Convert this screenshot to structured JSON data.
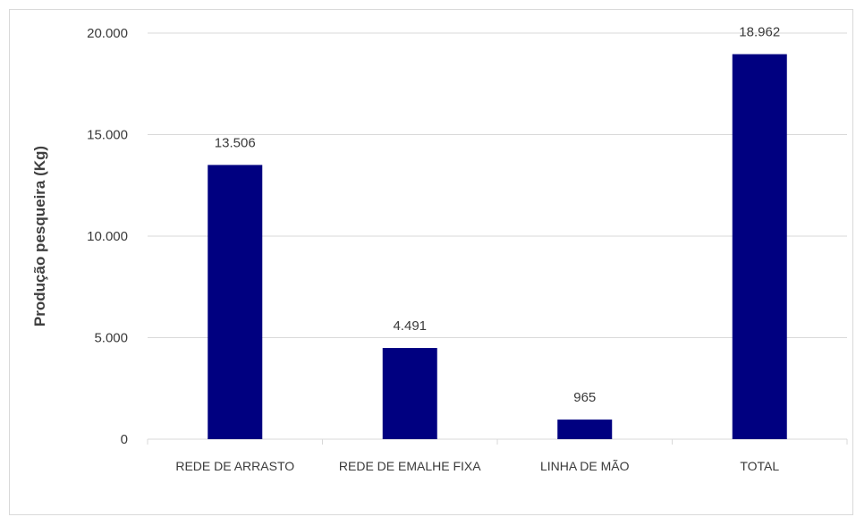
{
  "chart_data": {
    "type": "bar",
    "title": "",
    "xlabel": "",
    "ylabel": "Produção pesqueira (Kg)",
    "categories": [
      "REDE DE ARRASTO",
      "REDE DE EMALHE FIXA",
      "LINHA DE MÃO",
      "TOTAL"
    ],
    "values": [
      13506,
      4491,
      965,
      18962
    ],
    "data_labels": [
      "13.506",
      "4.491",
      "965",
      "18.962"
    ],
    "ylim": [
      0,
      20000
    ],
    "yticks": [
      0,
      5000,
      10000,
      15000,
      20000
    ],
    "ytick_labels": [
      "0",
      "5.000",
      "10.000",
      "15.000",
      "20.000"
    ],
    "grid": true,
    "legend": "none",
    "bar_color": "#000080",
    "grid_color": "#d9d9d9"
  }
}
